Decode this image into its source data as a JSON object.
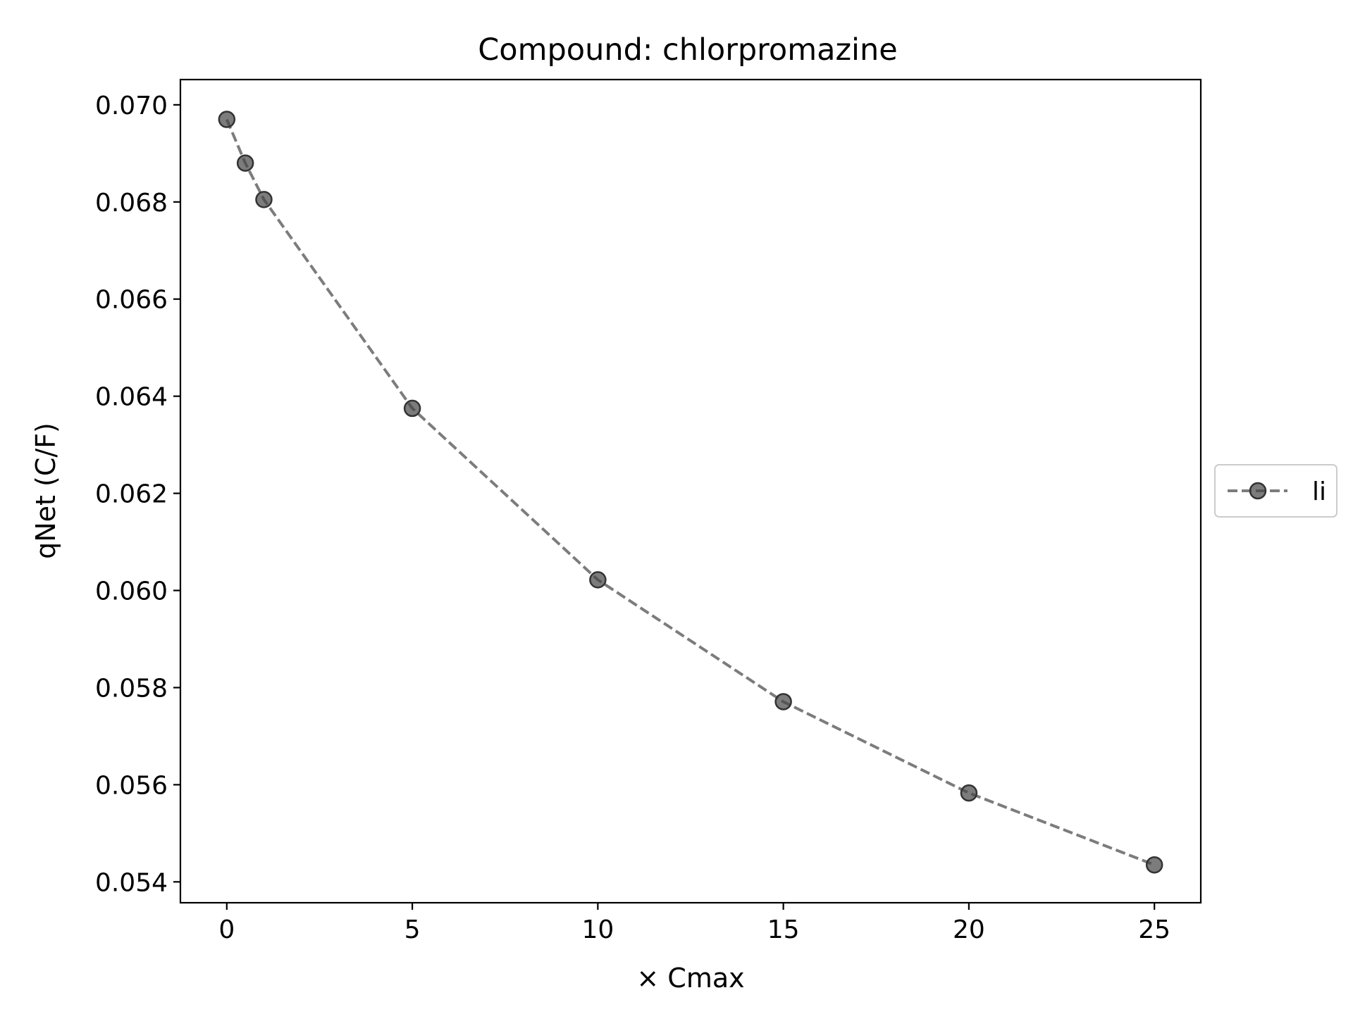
{
  "chart_data": {
    "type": "line",
    "title": "Compound: chlorpromazine",
    "xlabel": "× Cmax",
    "ylabel": "qNet (C/F)",
    "xlim": [
      -1.25,
      26.25
    ],
    "ylim": [
      0.05357,
      0.07052
    ],
    "xticks": [
      0,
      5,
      10,
      15,
      20,
      25
    ],
    "yticks": [
      0.054,
      0.056,
      0.058,
      0.06,
      0.062,
      0.064,
      0.066,
      0.068,
      0.07
    ],
    "ytick_labels": [
      "0.054",
      "0.056",
      "0.058",
      "0.060",
      "0.062",
      "0.064",
      "0.066",
      "0.068",
      "0.070"
    ],
    "xtick_labels": [
      "0",
      "5",
      "10",
      "15",
      "20",
      "25"
    ],
    "grid": false,
    "legend_position": "right, outside plot",
    "series": [
      {
        "name": "li",
        "color": "#444444",
        "line_style": "dashed",
        "marker": "circle",
        "x": [
          0,
          0.5,
          1,
          5,
          10,
          15,
          20,
          25
        ],
        "y": [
          0.0697,
          0.0688,
          0.06805,
          0.06375,
          0.06022,
          0.05771,
          0.05583,
          0.05435
        ]
      }
    ]
  }
}
